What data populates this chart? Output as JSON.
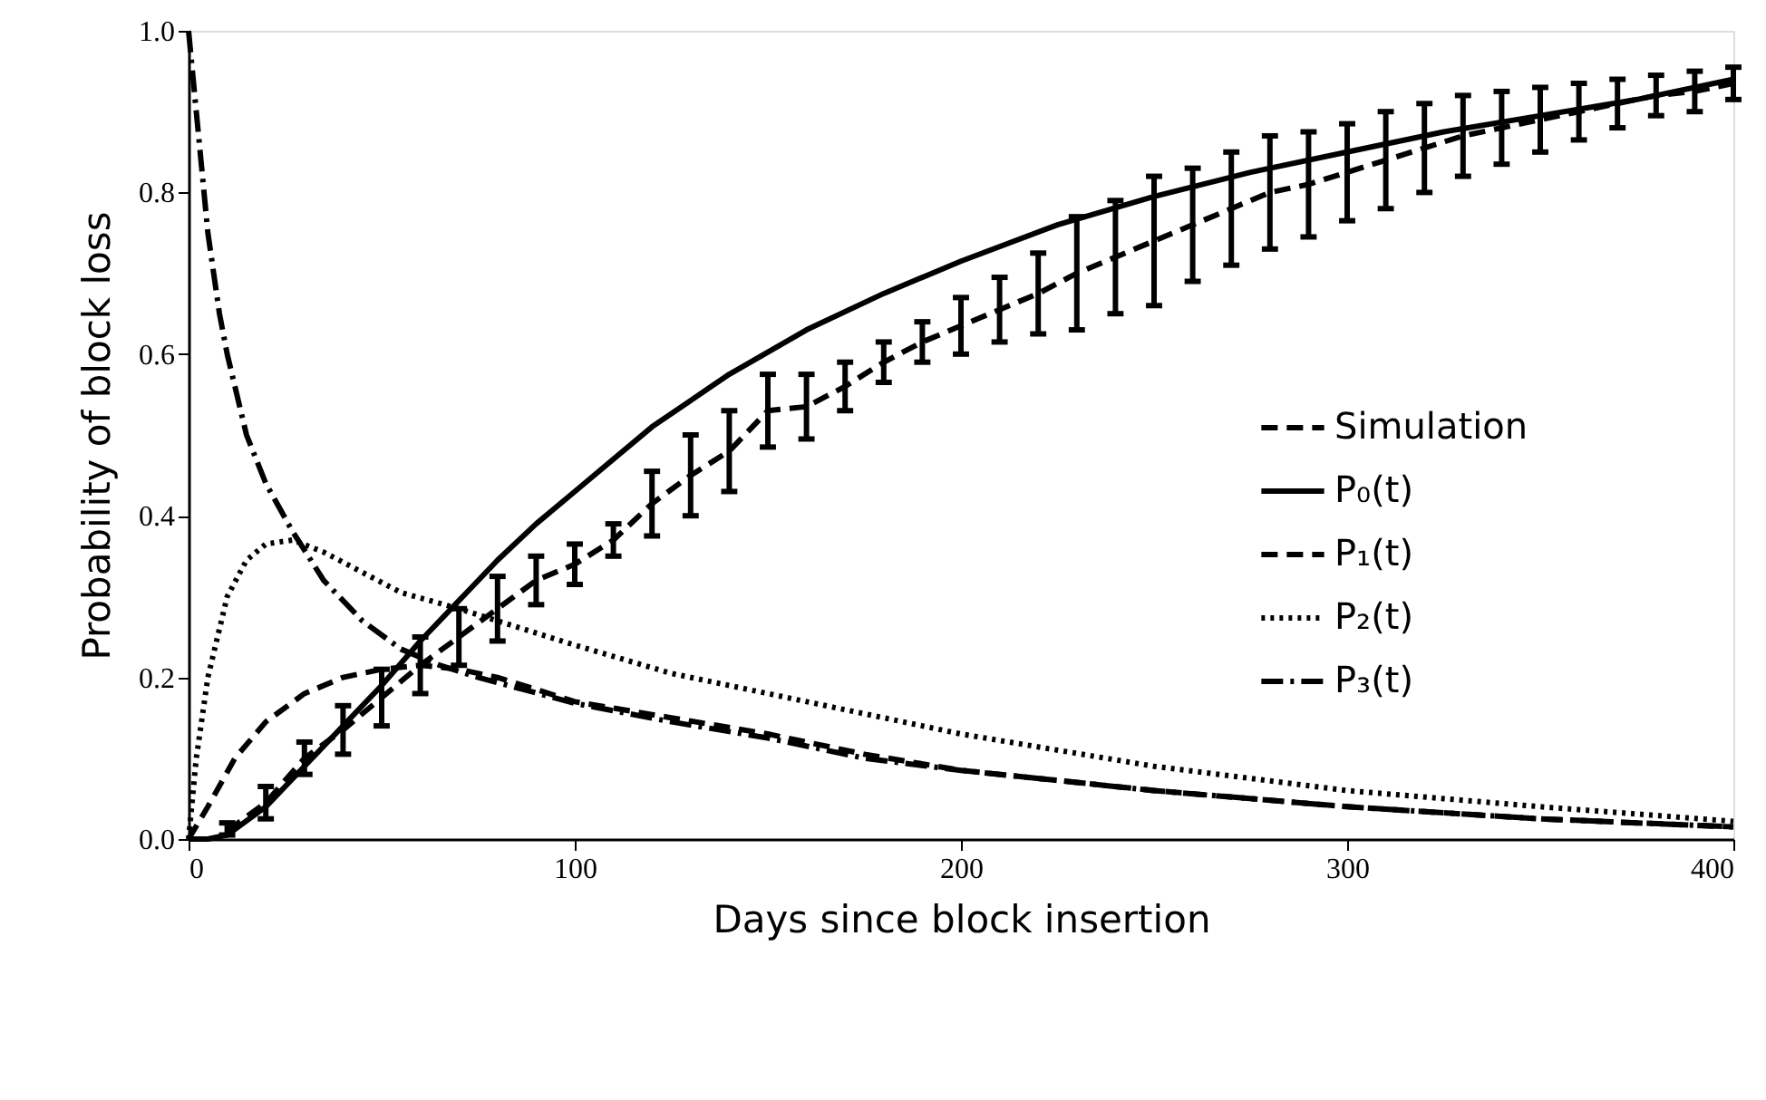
{
  "chart_data": {
    "type": "line",
    "xlabel": "Days since block insertion",
    "ylabel": "Probability of block loss",
    "xlim": [
      0,
      400
    ],
    "ylim": [
      0,
      1
    ],
    "xticks": [
      0,
      100,
      200,
      300,
      400
    ],
    "yticks": [
      {
        "value": 0,
        "label": "0.0"
      },
      {
        "value": 0.2,
        "label": "0.2"
      },
      {
        "value": 0.4,
        "label": "0.4"
      },
      {
        "value": 0.6,
        "label": "0.6"
      },
      {
        "value": 0.8,
        "label": "0.8"
      },
      {
        "value": 1,
        "label": "1.0"
      }
    ],
    "grid": false,
    "legend": "right",
    "marker": "none",
    "series": [
      {
        "name": "Simulation",
        "color": "#000000",
        "line_style": "dashed",
        "x": [
          10,
          20,
          30,
          40,
          50,
          60,
          70,
          80,
          90,
          100,
          110,
          120,
          130,
          140,
          150,
          160,
          170,
          180,
          190,
          200,
          210,
          220,
          230,
          240,
          250,
          260,
          270,
          280,
          290,
          300,
          310,
          320,
          330,
          340,
          350,
          360,
          370,
          380,
          390,
          400
        ],
        "values": [
          0.01,
          0.045,
          0.1,
          0.135,
          0.175,
          0.215,
          0.25,
          0.285,
          0.32,
          0.34,
          0.37,
          0.415,
          0.45,
          0.48,
          0.53,
          0.535,
          0.56,
          0.59,
          0.615,
          0.635,
          0.655,
          0.675,
          0.7,
          0.72,
          0.74,
          0.76,
          0.78,
          0.8,
          0.81,
          0.825,
          0.84,
          0.855,
          0.87,
          0.88,
          0.89,
          0.9,
          0.91,
          0.92,
          0.925,
          0.935
        ],
        "errors": [
          [
            0.005,
            0.02
          ],
          0.02,
          0.02,
          0.03,
          0.035,
          0.035,
          0.035,
          0.04,
          0.03,
          0.025,
          0.02,
          0.04,
          0.05,
          0.05,
          0.045,
          0.04,
          0.03,
          0.025,
          0.025,
          0.035,
          0.04,
          0.05,
          0.07,
          0.07,
          0.08,
          0.07,
          0.07,
          0.07,
          0.065,
          0.06,
          0.06,
          0.055,
          0.05,
          0.045,
          0.04,
          0.035,
          0.03,
          0.025,
          0.025,
          0.02
        ]
      },
      {
        "name": "P₀(t)",
        "color": "#000000",
        "line_style": "solid",
        "x": [
          0,
          5,
          10,
          20,
          30,
          40,
          50,
          60,
          70,
          80,
          90,
          100,
          120,
          140,
          160,
          180,
          200,
          225,
          250,
          275,
          300,
          325,
          350,
          375,
          400
        ],
        "values": [
          0,
          0,
          0.005,
          0.04,
          0.09,
          0.14,
          0.19,
          0.245,
          0.295,
          0.345,
          0.39,
          0.43,
          0.51,
          0.575,
          0.63,
          0.675,
          0.715,
          0.76,
          0.795,
          0.825,
          0.85,
          0.875,
          0.895,
          0.915,
          0.94
        ]
      },
      {
        "name": "P₁(t)",
        "color": "#000000",
        "line_style": "dashed",
        "x": [
          0,
          5,
          12,
          20,
          30,
          40,
          50,
          60,
          70,
          80,
          100,
          125,
          150,
          175,
          200,
          250,
          300,
          350,
          400
        ],
        "values": [
          0,
          0.04,
          0.1,
          0.145,
          0.18,
          0.2,
          0.21,
          0.215,
          0.21,
          0.2,
          0.17,
          0.15,
          0.13,
          0.105,
          0.085,
          0.06,
          0.04,
          0.025,
          0.015
        ]
      },
      {
        "name": "P₂(t)",
        "color": "#000000",
        "line_style": "dotted",
        "x": [
          0,
          2,
          5,
          10,
          15,
          20,
          27,
          35,
          45,
          55,
          70,
          80,
          100,
          125,
          150,
          175,
          200,
          250,
          300,
          350,
          400
        ],
        "values": [
          0,
          0.1,
          0.2,
          0.3,
          0.345,
          0.365,
          0.37,
          0.355,
          0.33,
          0.305,
          0.285,
          0.27,
          0.24,
          0.205,
          0.18,
          0.155,
          0.13,
          0.09,
          0.06,
          0.04,
          0.022
        ]
      },
      {
        "name": "P₃(t)",
        "color": "#000000",
        "line_style": "dashdot",
        "x": [
          0,
          2,
          5,
          8,
          10,
          15,
          20,
          27,
          35,
          45,
          55,
          65,
          75,
          100,
          125,
          150,
          175,
          200,
          250,
          300,
          350,
          400
        ],
        "values": [
          1,
          0.9,
          0.75,
          0.65,
          0.6,
          0.5,
          0.44,
          0.38,
          0.32,
          0.27,
          0.235,
          0.215,
          0.2,
          0.168,
          0.145,
          0.125,
          0.1,
          0.085,
          0.06,
          0.04,
          0.025,
          0.015
        ]
      }
    ]
  }
}
